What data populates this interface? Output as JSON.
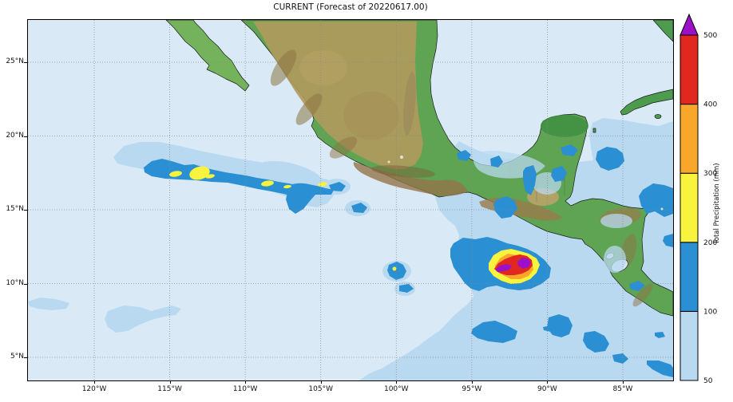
{
  "figure": {
    "title": "CURRENT (Forecast of 20220617.00)"
  },
  "axes": {
    "lon_ticks": [
      {
        "label": "120°W",
        "deg": 120
      },
      {
        "label": "115°W",
        "deg": 115
      },
      {
        "label": "110°W",
        "deg": 110
      },
      {
        "label": "105°W",
        "deg": 105
      },
      {
        "label": "100°W",
        "deg": 100
      },
      {
        "label": "95°W",
        "deg": 95
      },
      {
        "label": "90°W",
        "deg": 90
      },
      {
        "label": "85°W",
        "deg": 85
      }
    ],
    "lat_ticks": [
      {
        "label": "25°N",
        "deg": 25
      },
      {
        "label": "20°N",
        "deg": 20
      },
      {
        "label": "15°N",
        "deg": 15
      },
      {
        "label": "10°N",
        "deg": 10
      },
      {
        "label": "5°N",
        "deg": 5
      }
    ]
  },
  "colorbar": {
    "title": "Total Precipitation (mm)",
    "tick_labels": [
      "50",
      "100",
      "200",
      "300",
      "400",
      "500"
    ],
    "levels": [
      {
        "range": "50-100",
        "color": "#b9d9f0"
      },
      {
        "range": "100-200",
        "color": "#2a8fd3"
      },
      {
        "range": "200-300",
        "color": "#f8f43e"
      },
      {
        "range": "300-400",
        "color": "#f9a72b"
      },
      {
        "range": "400-500",
        "color": "#e02820"
      }
    ],
    "over_color": "#9c10c9"
  },
  "map": {
    "ocean_color": "#d9eaf6",
    "precip_features": [
      "Intense precipitation core >500 mm near 11.5N 91W off the Guatemala/El Salvador coast",
      "Zonal rain band 100-300 mm along 17-18N between 116W and 107W over the Pacific",
      "Scattered 100-200 mm cells over Bay of Campeche, Yucatan, western Caribbean and 7-8N ITCZ band"
    ]
  }
}
